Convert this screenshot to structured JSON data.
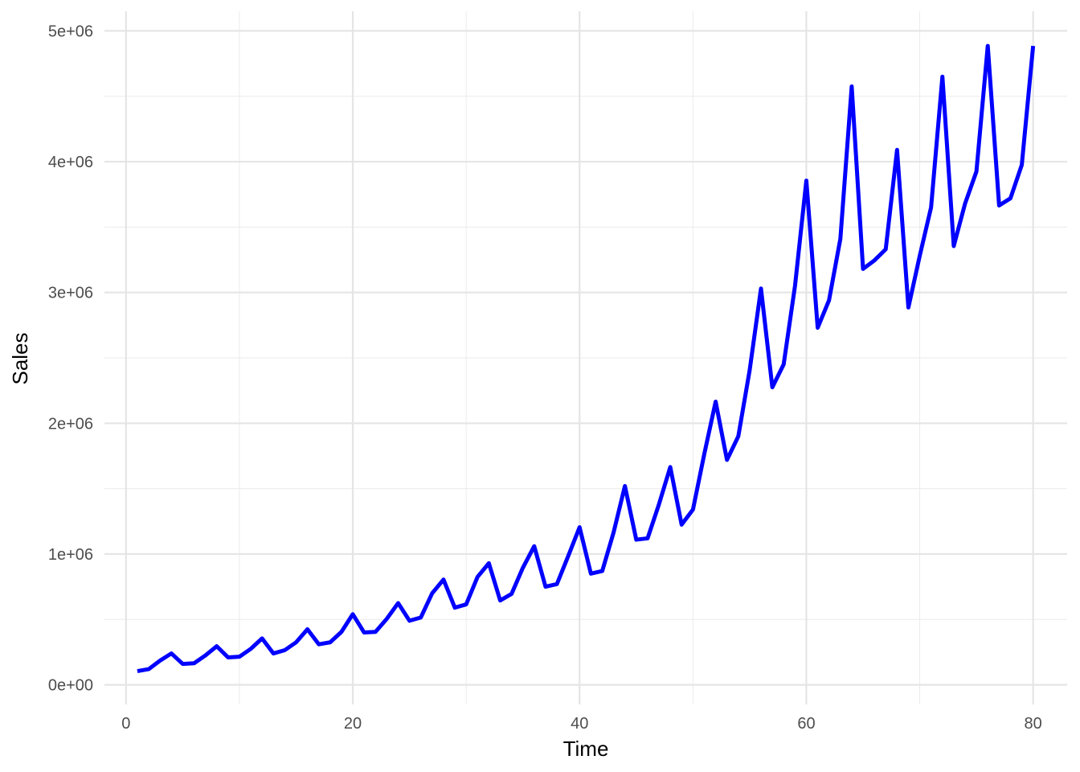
{
  "chart_data": {
    "type": "line",
    "title": "",
    "xlabel": "Time",
    "ylabel": "Sales",
    "xlim": [
      -1.9,
      83.0
    ],
    "ylim": [
      -150000,
      5150000
    ],
    "x_ticks": [
      0,
      20,
      40,
      60,
      80
    ],
    "x_tick_labels": [
      "0",
      "20",
      "40",
      "60",
      "80"
    ],
    "y_ticks": [
      0,
      1000000,
      2000000,
      3000000,
      4000000,
      5000000
    ],
    "y_tick_labels": [
      "0e+00",
      "1e+06",
      "2e+06",
      "3e+06",
      "4e+06",
      "5e+06"
    ],
    "grid": true,
    "series": [
      {
        "color": "#0000ff",
        "x": [
          1,
          2,
          3,
          4,
          5,
          6,
          7,
          8,
          9,
          10,
          11,
          12,
          13,
          14,
          15,
          16,
          17,
          18,
          19,
          20,
          21,
          22,
          23,
          24,
          25,
          26,
          27,
          28,
          29,
          30,
          31,
          32,
          33,
          34,
          35,
          36,
          37,
          38,
          39,
          40,
          41,
          42,
          43,
          44,
          45,
          46,
          47,
          48,
          49,
          50,
          51,
          52,
          53,
          54,
          55,
          56,
          57,
          58,
          59,
          60,
          61,
          62,
          63,
          64,
          65,
          66,
          67,
          68,
          69,
          70,
          71,
          72,
          73,
          74,
          75,
          76,
          77,
          78,
          79,
          80
        ],
        "values": [
          105000,
          120000,
          185000,
          240000,
          160000,
          165000,
          225000,
          295000,
          210000,
          215000,
          275000,
          355000,
          240000,
          265000,
          325000,
          425000,
          310000,
          325000,
          405000,
          540000,
          400000,
          405000,
          505000,
          625000,
          490000,
          515000,
          700000,
          805000,
          590000,
          615000,
          825000,
          930000,
          645000,
          695000,
          895000,
          1060000,
          750000,
          770000,
          985000,
          1205000,
          850000,
          870000,
          1165000,
          1520000,
          1110000,
          1120000,
          1380000,
          1665000,
          1225000,
          1340000,
          1765000,
          2165000,
          1720000,
          1900000,
          2405000,
          3030000,
          2275000,
          2450000,
          3050000,
          3855000,
          2730000,
          2940000,
          3410000,
          4575000,
          3180000,
          3245000,
          3330000,
          4090000,
          2885000,
          3280000,
          3650000,
          4650000,
          3355000,
          3680000,
          3925000,
          4885000,
          3665000,
          3720000,
          3975000,
          4885000
        ]
      }
    ]
  }
}
